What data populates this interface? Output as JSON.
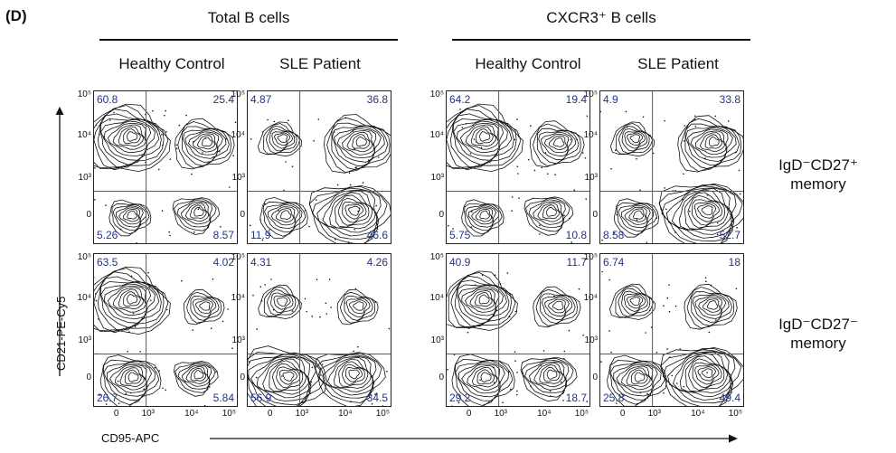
{
  "figure": {
    "panel_label": "(D)",
    "group_titles": [
      "Total B cells",
      "CXCR3⁺ B cells"
    ],
    "column_titles": [
      "Healthy Control",
      "SLE Patient",
      "Healthy Control",
      "SLE Patient"
    ],
    "row_labels": [
      {
        "line1": "IgD⁻CD27⁺",
        "line2": "memory"
      },
      {
        "line1": "IgD⁻CD27⁻",
        "line2": "memory"
      }
    ],
    "y_axis_label": "CD21-PE-Cy5",
    "x_axis_label": "CD95-APC",
    "y_ticks": [
      "10⁵",
      "10⁴",
      "10³",
      "0"
    ],
    "x_ticks": [
      "0",
      "10³",
      "10⁴",
      "10⁵"
    ],
    "colors": {
      "quadrant_line": "#3a55c8",
      "quadrant_text": "#23338a",
      "contour": "#111111"
    }
  },
  "chart_data": {
    "type": "contour",
    "title": "",
    "xlabel": "CD95-APC",
    "ylabel": "CD21-PE-Cy5",
    "axis_scale": "biexponential",
    "x_ticks": [
      "0",
      "10^3",
      "10^4",
      "10^5"
    ],
    "y_ticks": [
      "0",
      "10^3",
      "10^4",
      "10^5"
    ],
    "quadrant_order": [
      "top-left",
      "top-right",
      "bottom-left",
      "bottom-right"
    ],
    "panels": [
      {
        "group": "Total B cells",
        "column": "Healthy Control",
        "row": "IgD-CD27+ memory",
        "quadrants": [
          "60.8",
          "25.4",
          "5.26",
          "8.57"
        ]
      },
      {
        "group": "Total B cells",
        "column": "SLE Patient",
        "row": "IgD-CD27+ memory",
        "quadrants": [
          "4.87",
          "36.8",
          "11.9",
          "46.6"
        ]
      },
      {
        "group": "CXCR3+ B cells",
        "column": "Healthy Control",
        "row": "IgD-CD27+ memory",
        "quadrants": [
          "64.2",
          "19.4",
          "5.75",
          "10.8"
        ]
      },
      {
        "group": "CXCR3+ B cells",
        "column": "SLE Patient",
        "row": "IgD-CD27+ memory",
        "quadrants": [
          "4.9",
          "33.8",
          "8.58",
          "52.7"
        ]
      },
      {
        "group": "Total B cells",
        "column": "Healthy Control",
        "row": "IgD-CD27- memory",
        "quadrants": [
          "63.5",
          "4.02",
          "26.7",
          "5.84"
        ]
      },
      {
        "group": "Total B cells",
        "column": "SLE Patient",
        "row": "IgD-CD27- memory",
        "quadrants": [
          "4.31",
          "4.26",
          "56.9",
          "34.5"
        ]
      },
      {
        "group": "CXCR3+ B cells",
        "column": "Healthy Control",
        "row": "IgD-CD27- memory",
        "quadrants": [
          "40.9",
          "11.7",
          "29.2",
          "18.7"
        ]
      },
      {
        "group": "CXCR3+ B cells",
        "column": "SLE Patient",
        "row": "IgD-CD27- memory",
        "quadrants": [
          "6.74",
          "18",
          "25.8",
          "49.4"
        ]
      }
    ]
  }
}
